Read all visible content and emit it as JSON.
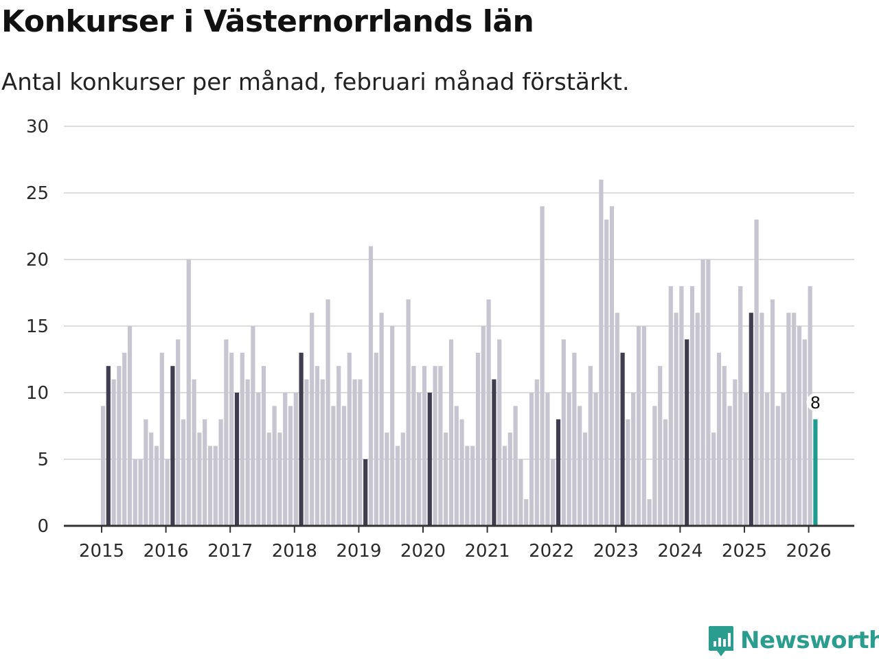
{
  "title": "Konkurser i Västernorrlands län",
  "subtitle": "Antal konkurser per månad, februari månad förstärkt.",
  "brand": {
    "name": "Newsworthy",
    "color": "#2a9d8f"
  },
  "colors": {
    "bar": "#c6c5d1",
    "highlight": "#3f3d4f",
    "latest": "#1e9c8f",
    "grid": "#dcdcdc",
    "axis": "#333333"
  },
  "chart_data": {
    "type": "bar",
    "title": "Konkurser i Västernorrlands län",
    "xlabel": "",
    "ylabel": "",
    "ylim": [
      0,
      30
    ],
    "yticks": [
      "0",
      "5",
      "10",
      "15",
      "20",
      "25",
      "30"
    ],
    "xticks": [
      "2015",
      "2016",
      "2017",
      "2018",
      "2019",
      "2020",
      "2021",
      "2022",
      "2023",
      "2024",
      "2025",
      "2026"
    ],
    "start": "2015-01",
    "highlight_month": "februari",
    "values": [
      9,
      12,
      11,
      12,
      13,
      15,
      5,
      5,
      8,
      7,
      6,
      13,
      5,
      12,
      14,
      8,
      20,
      11,
      7,
      8,
      6,
      6,
      8,
      14,
      13,
      10,
      13,
      11,
      15,
      10,
      12,
      7,
      9,
      7,
      10,
      9,
      10,
      13,
      11,
      16,
      12,
      11,
      17,
      9,
      12,
      9,
      13,
      11,
      11,
      5,
      21,
      13,
      16,
      7,
      15,
      6,
      7,
      17,
      12,
      10,
      12,
      10,
      12,
      12,
      7,
      14,
      9,
      8,
      6,
      6,
      13,
      15,
      17,
      11,
      14,
      6,
      7,
      9,
      5,
      2,
      10,
      11,
      24,
      10,
      5,
      8,
      14,
      10,
      13,
      9,
      7,
      12,
      10,
      26,
      23,
      24,
      16,
      13,
      8,
      10,
      15,
      15,
      2,
      9,
      12,
      8,
      18,
      16,
      18,
      14,
      18,
      16,
      20,
      20,
      7,
      13,
      12,
      9,
      11,
      18,
      10,
      16,
      23,
      16,
      10,
      17,
      9,
      10,
      16,
      16,
      15,
      14,
      18,
      8
    ],
    "annotation": {
      "label": "8",
      "target": "last"
    }
  }
}
